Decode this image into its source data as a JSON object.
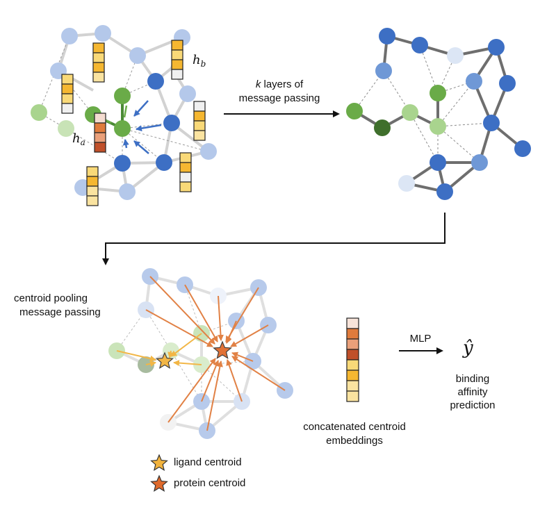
{
  "panels": {
    "input_graph": {
      "vector_labels": {
        "h_a": "h",
        "h_a_sub": "a",
        "h_b": "h",
        "h_b_sub": "b"
      }
    },
    "message_passing": {
      "k_symbol": "k",
      "line1_rest": " layers of",
      "line2": "message passing"
    },
    "centroid": {
      "line1": "centroid pooling",
      "line2": "message passing"
    },
    "embedding": {
      "line1": "concatenated centroid",
      "line2": "embeddings"
    },
    "output": {
      "mlp": "MLP",
      "yhat": "ŷ",
      "line1": "binding",
      "line2": "affinity",
      "line3": "prediction"
    }
  },
  "legend": [
    {
      "label": "ligand centroid",
      "color": "#f2b33d"
    },
    {
      "label": "protein centroid",
      "color": "#e06a2c"
    }
  ],
  "colors": {
    "protein_dark": "#3d6fc4",
    "protein_light": "#b4c8ea",
    "protein_mid": "#6f98d6",
    "ligand": "#6aab48",
    "ligand_light": "#a9d48e",
    "ligand_dark": "#3f6f2c",
    "orange_arrow": "#e07b3c",
    "yellow_arrow": "#f2b33d",
    "blue_arrow": "#3d6fc4"
  }
}
